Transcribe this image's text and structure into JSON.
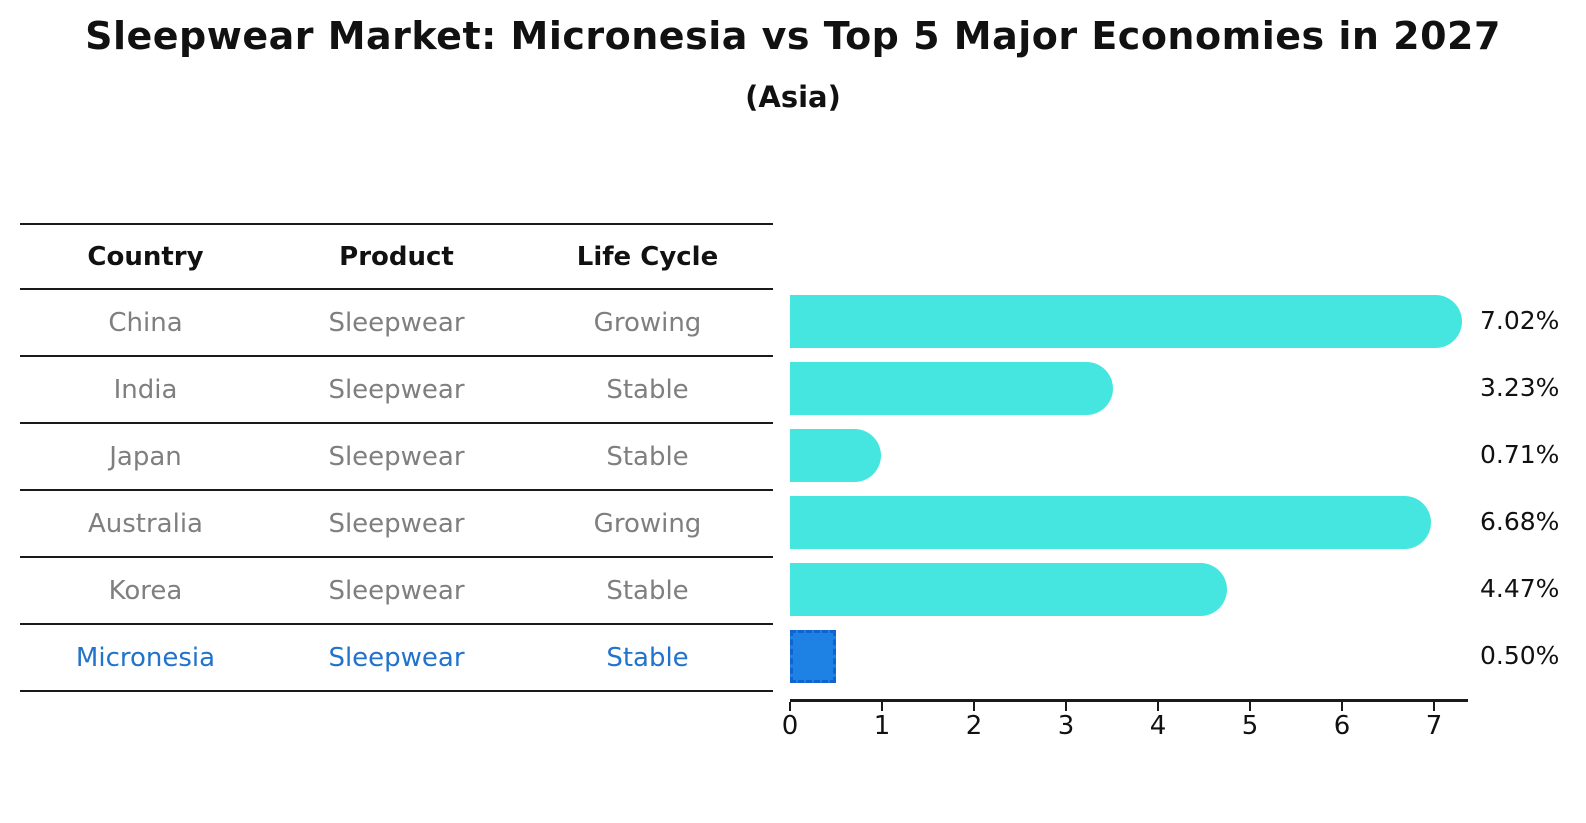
{
  "title": "Sleepwear Market: Micronesia vs Top 5 Major Economies in 2027",
  "subtitle": "(Asia)",
  "colors": {
    "bar": "#46e6e0",
    "highlight_bar": "#1e82e4",
    "highlight_bar_border": "#1162d2",
    "highlight_text": "#2173cc",
    "table_text": "#7f7f7f",
    "header_text": "#111111"
  },
  "table": {
    "headers": [
      "Country",
      "Product",
      "Life Cycle"
    ],
    "rows": [
      {
        "country": "China",
        "product": "Sleepwear",
        "life_cycle": "Growing",
        "highlight": false
      },
      {
        "country": "India",
        "product": "Sleepwear",
        "life_cycle": "Stable",
        "highlight": false
      },
      {
        "country": "Japan",
        "product": "Sleepwear",
        "life_cycle": "Stable",
        "highlight": false
      },
      {
        "country": "Australia",
        "product": "Sleepwear",
        "life_cycle": "Growing",
        "highlight": false
      },
      {
        "country": "Korea",
        "product": "Sleepwear",
        "life_cycle": "Stable",
        "highlight": false
      },
      {
        "country": "Micronesia",
        "product": "Sleepwear",
        "life_cycle": "Stable",
        "highlight": true
      }
    ]
  },
  "chart_data": {
    "type": "bar",
    "orientation": "horizontal",
    "title": "Sleepwear Market: Micronesia vs Top 5 Major Economies in 2027",
    "subtitle": "(Asia)",
    "categories": [
      "China",
      "India",
      "Japan",
      "Australia",
      "Korea",
      "Micronesia"
    ],
    "values": [
      7.02,
      3.23,
      0.71,
      6.68,
      4.47,
      0.5
    ],
    "value_labels": [
      "7.02%",
      "3.23%",
      "0.71%",
      "6.68%",
      "4.47%",
      "0.50%"
    ],
    "highlight_index": 5,
    "xlabel": "",
    "ylabel": "",
    "xlim": [
      0,
      7.37
    ],
    "xticks": [
      0,
      1,
      2,
      3,
      4,
      5,
      6,
      7
    ],
    "grid": false,
    "legend": false
  }
}
